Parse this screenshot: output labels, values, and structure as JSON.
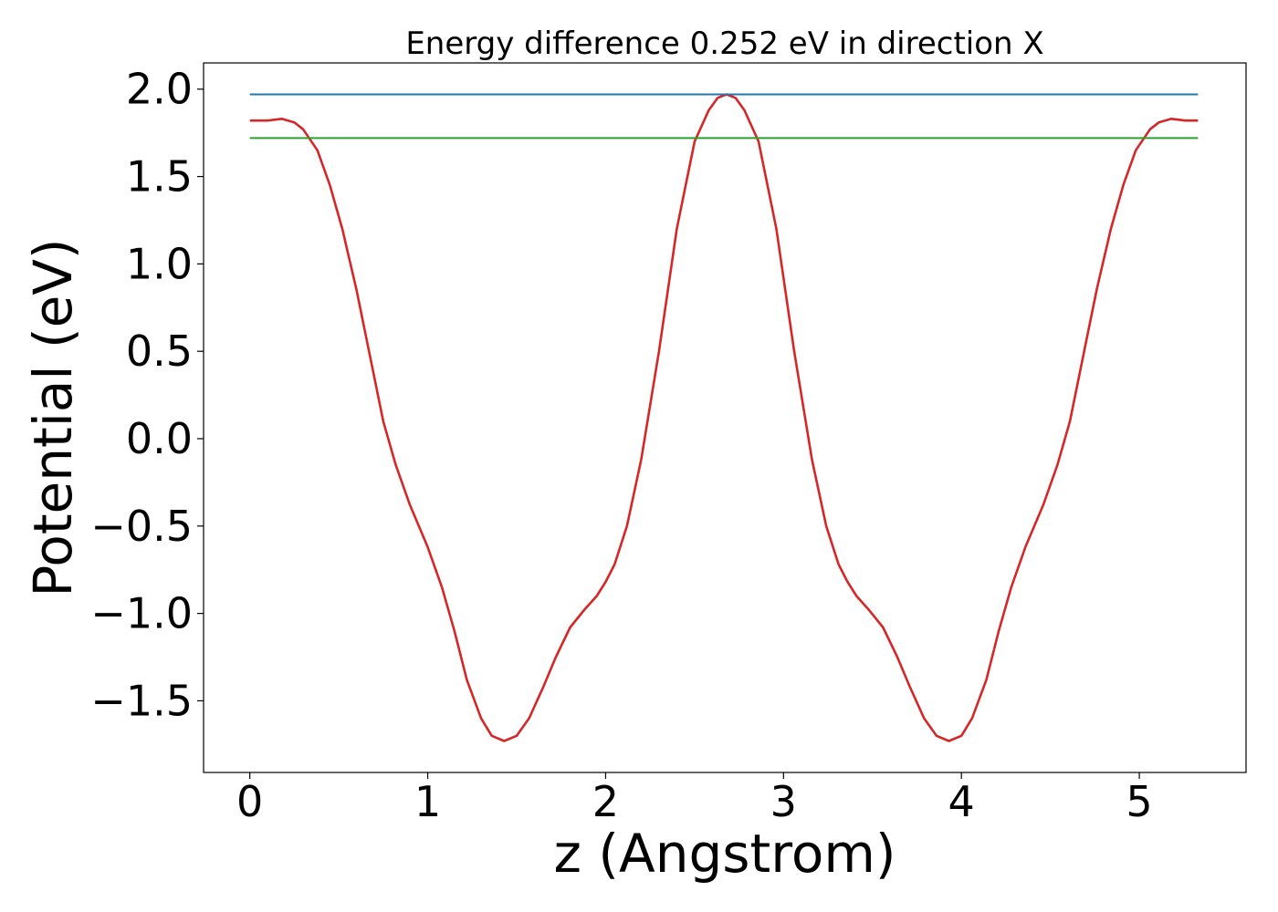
{
  "chart_data": {
    "type": "line",
    "title": "Energy difference 0.252 eV in direction X",
    "xlabel": "z (Angstrom)",
    "ylabel": "Potential (eV)",
    "xlim": [
      -0.26,
      5.6
    ],
    "ylim": [
      -1.91,
      2.15
    ],
    "x_ticks": [
      0,
      1,
      2,
      3,
      4,
      5
    ],
    "x_tick_labels": [
      "0",
      "1",
      "2",
      "3",
      "4",
      "5"
    ],
    "y_ticks": [
      2.0,
      1.5,
      1.0,
      0.5,
      0.0,
      -0.5,
      -1.0,
      -1.5
    ],
    "y_tick_labels": [
      "2.0",
      "1.5",
      "1.0",
      "0.5",
      "0.0",
      "−0.5",
      "−1.0",
      "−1.5"
    ],
    "grid": false,
    "series": [
      {
        "color": "#d62728",
        "points": [
          [
            0.0,
            1.82
          ],
          [
            0.1,
            1.82
          ],
          [
            0.18,
            1.83
          ],
          [
            0.25,
            1.81
          ],
          [
            0.3,
            1.77
          ],
          [
            0.38,
            1.65
          ],
          [
            0.45,
            1.45
          ],
          [
            0.52,
            1.2
          ],
          [
            0.6,
            0.85
          ],
          [
            0.68,
            0.45
          ],
          [
            0.75,
            0.1
          ],
          [
            0.82,
            -0.15
          ],
          [
            0.9,
            -0.38
          ],
          [
            1.0,
            -0.62
          ],
          [
            1.08,
            -0.85
          ],
          [
            1.15,
            -1.1
          ],
          [
            1.22,
            -1.38
          ],
          [
            1.3,
            -1.6
          ],
          [
            1.36,
            -1.7
          ],
          [
            1.43,
            -1.73
          ],
          [
            1.5,
            -1.7
          ],
          [
            1.57,
            -1.6
          ],
          [
            1.65,
            -1.42
          ],
          [
            1.72,
            -1.25
          ],
          [
            1.8,
            -1.08
          ],
          [
            1.88,
            -0.98
          ],
          [
            1.95,
            -0.9
          ],
          [
            2.0,
            -0.82
          ],
          [
            2.05,
            -0.72
          ],
          [
            2.12,
            -0.5
          ],
          [
            2.2,
            -0.12
          ],
          [
            2.3,
            0.5
          ],
          [
            2.4,
            1.2
          ],
          [
            2.5,
            1.7
          ],
          [
            2.58,
            1.88
          ],
          [
            2.63,
            1.95
          ],
          [
            2.68,
            1.97
          ],
          [
            2.73,
            1.95
          ],
          [
            2.78,
            1.88
          ],
          [
            2.86,
            1.7
          ],
          [
            2.96,
            1.2
          ],
          [
            3.06,
            0.5
          ],
          [
            3.16,
            -0.12
          ],
          [
            3.24,
            -0.5
          ],
          [
            3.31,
            -0.72
          ],
          [
            3.36,
            -0.82
          ],
          [
            3.41,
            -0.9
          ],
          [
            3.48,
            -0.98
          ],
          [
            3.56,
            -1.08
          ],
          [
            3.64,
            -1.25
          ],
          [
            3.71,
            -1.42
          ],
          [
            3.79,
            -1.6
          ],
          [
            3.86,
            -1.7
          ],
          [
            3.93,
            -1.73
          ],
          [
            4.0,
            -1.7
          ],
          [
            4.06,
            -1.6
          ],
          [
            4.14,
            -1.38
          ],
          [
            4.21,
            -1.1
          ],
          [
            4.28,
            -0.85
          ],
          [
            4.36,
            -0.62
          ],
          [
            4.46,
            -0.38
          ],
          [
            4.54,
            -0.15
          ],
          [
            4.61,
            0.1
          ],
          [
            4.68,
            0.45
          ],
          [
            4.76,
            0.85
          ],
          [
            4.84,
            1.2
          ],
          [
            4.91,
            1.45
          ],
          [
            4.98,
            1.65
          ],
          [
            5.06,
            1.77
          ],
          [
            5.11,
            1.81
          ],
          [
            5.18,
            1.83
          ],
          [
            5.26,
            1.82
          ],
          [
            5.33,
            1.82
          ]
        ]
      },
      {
        "color": "#1f77b4",
        "points": [
          [
            0.0,
            1.97
          ],
          [
            5.33,
            1.97
          ]
        ]
      },
      {
        "color": "#2ca02c",
        "points": [
          [
            0.0,
            1.72
          ],
          [
            5.33,
            1.72
          ]
        ]
      }
    ]
  }
}
